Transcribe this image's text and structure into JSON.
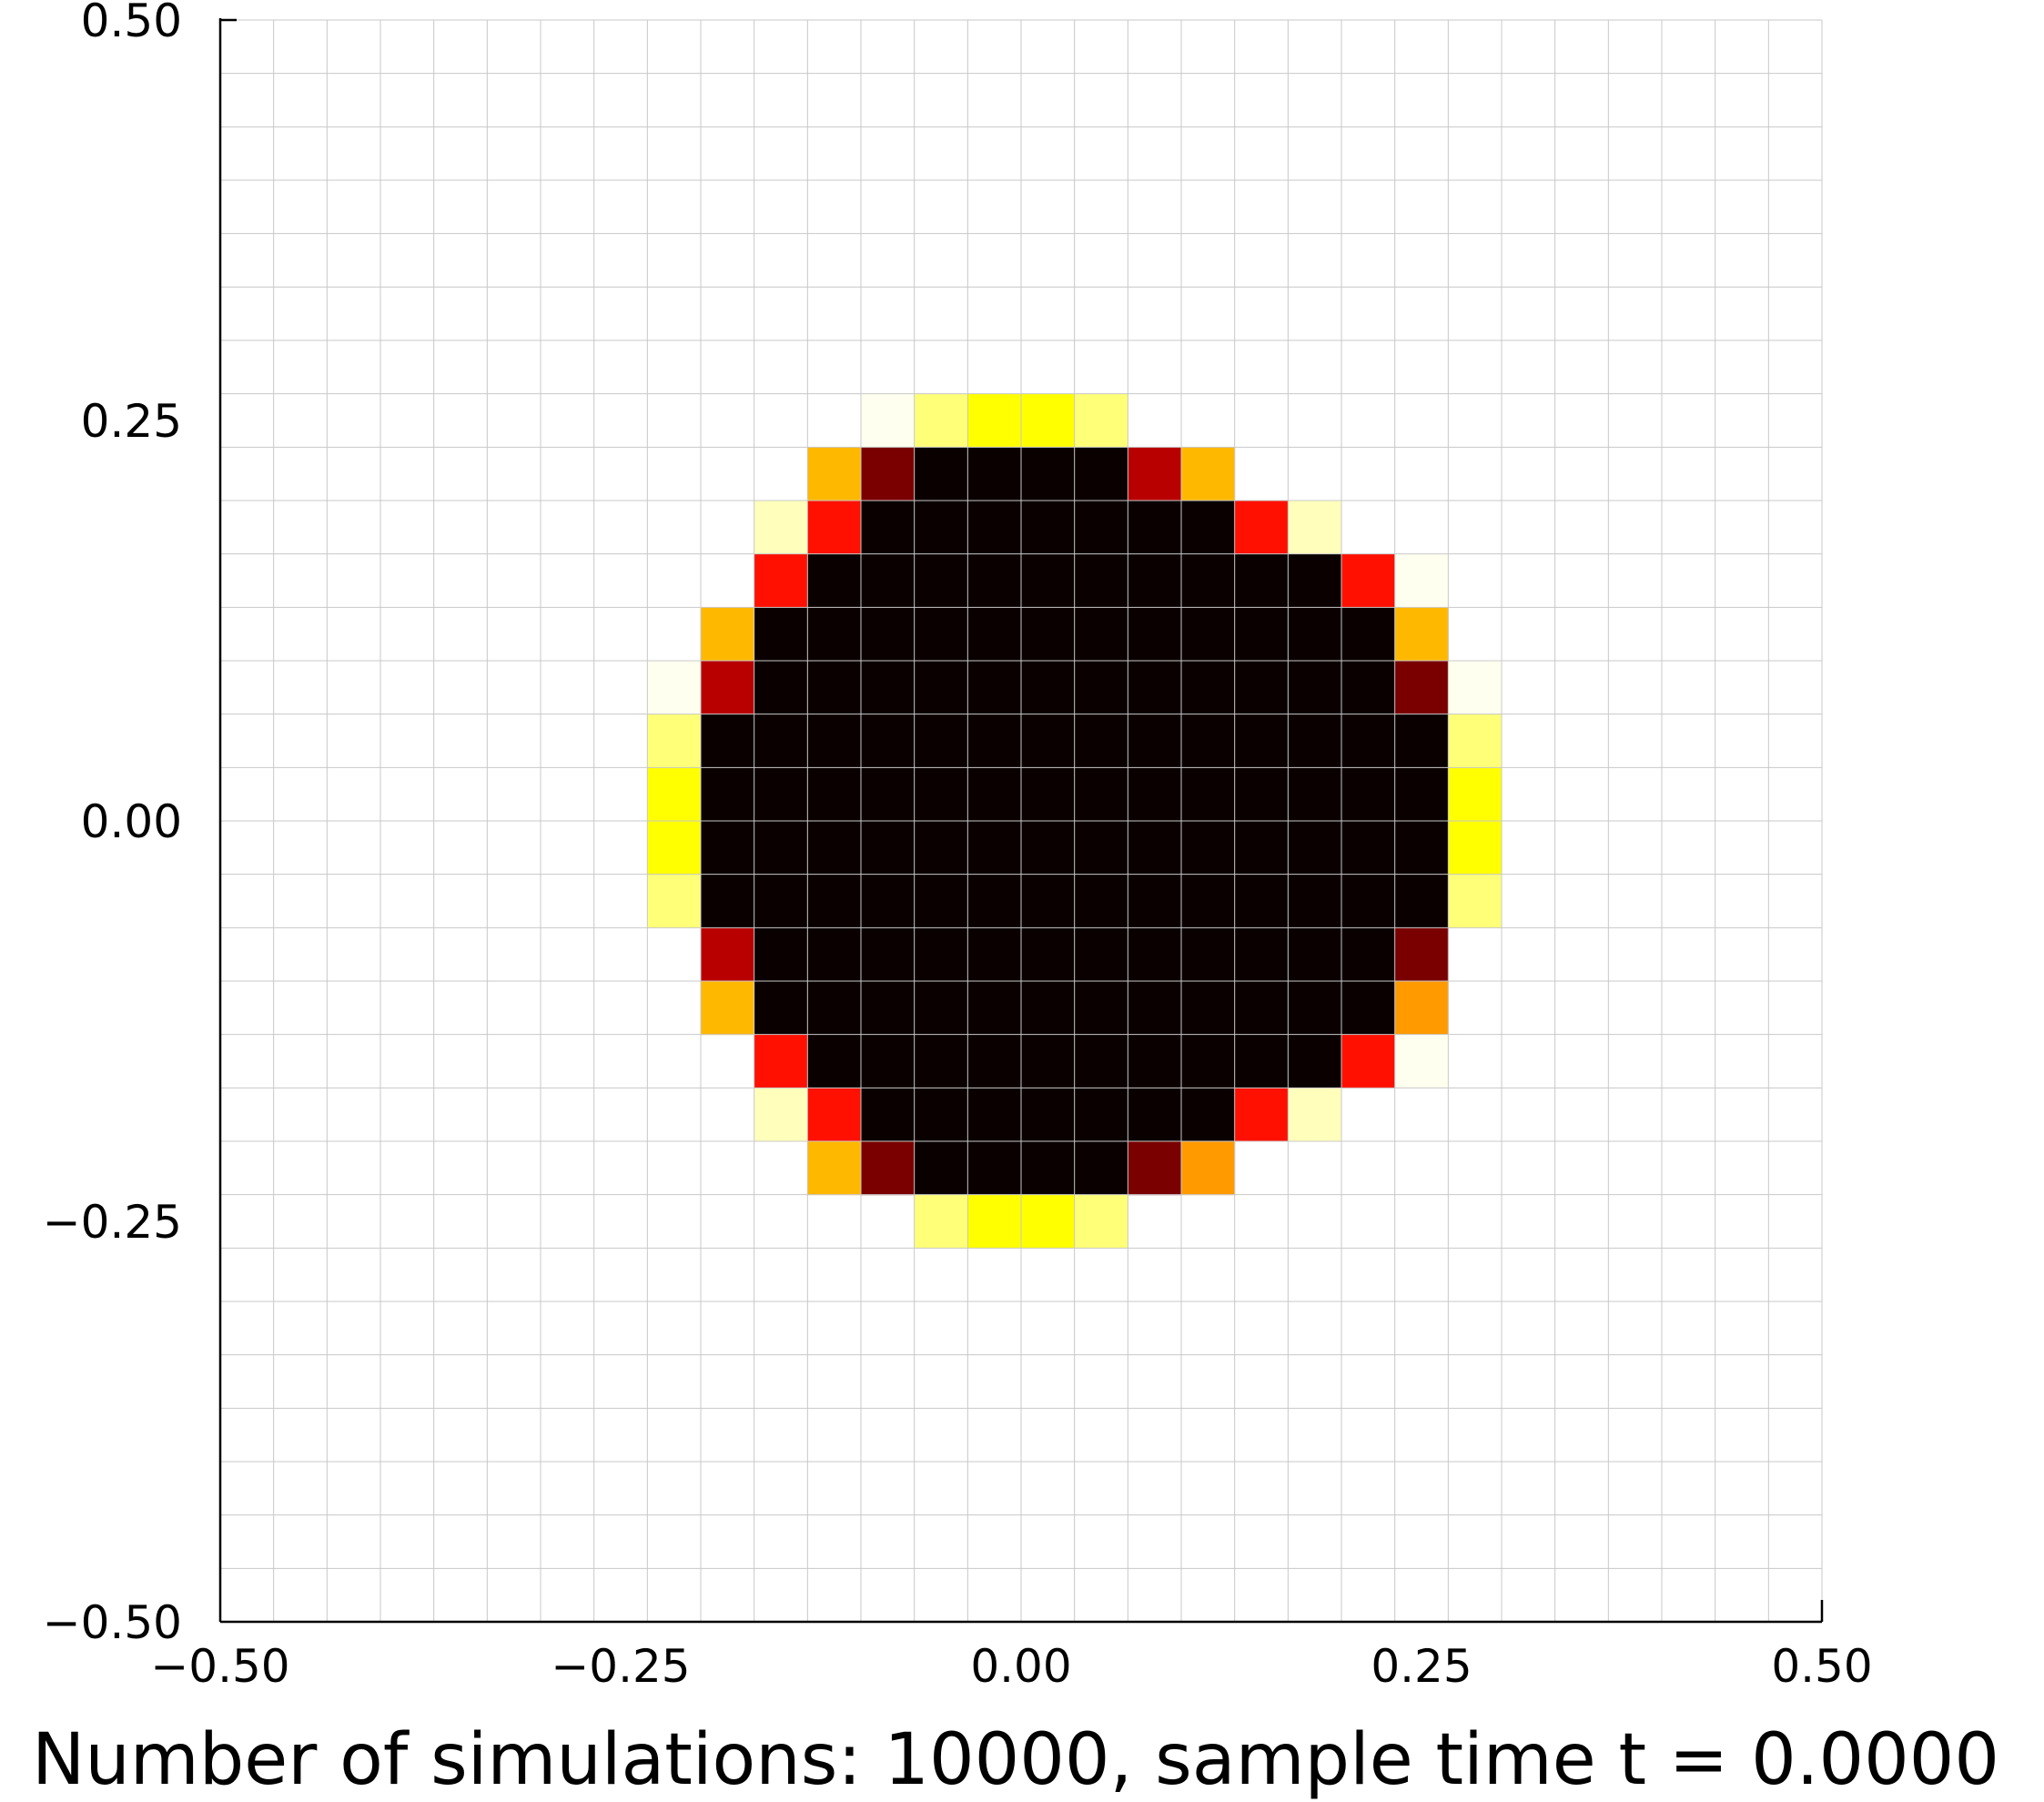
{
  "chart_data": {
    "type": "heatmap",
    "title": "",
    "caption": "Number of simulations: 10000, sample time t = 0.0000",
    "xlabel": "",
    "ylabel": "",
    "xlim": [
      -0.5,
      0.5
    ],
    "ylim": [
      -0.5,
      0.5
    ],
    "grid": true,
    "grid_cells": 30,
    "x_ticks": [
      "−0.50",
      "−0.25",
      "0.00",
      "0.25",
      "0.50"
    ],
    "y_ticks": [
      "0.50",
      "0.25",
      "0.00",
      "−0.25",
      "−0.50"
    ],
    "x_tick_values": [
      -0.5,
      -0.25,
      0,
      0.25,
      0.5
    ],
    "y_tick_values": [
      0.5,
      0.25,
      0,
      -0.25,
      -0.5
    ],
    "colormap": "hot (inverted)",
    "colors": {
      "empty": "#ffffff",
      "grid": "#c8c8c8",
      "axis": "#000000",
      "legend": {
        "c": "#0a0000",
        "m": "#7a0000",
        "r": "#b80000",
        "R": "#ff1000",
        "o": "#ff9a00",
        "O": "#ffb800",
        "y": "#ffff00",
        "Y": "#ffff78",
        "p": "#ffffbb",
        "w": "#fffff0"
      }
    },
    "cell_rows_top_to_bottom": [
      "..............................",
      "..............................",
      "..............................",
      "..............................",
      "..............................",
      "..............................",
      "..............................",
      "............wYyyY.............",
      "...........Omcccc rO..........",
      "..........pRcccccccRp.........",
      "..........Rcccccccccc Rw......",
      ".........Occcccccccccc O......",
      "........wrcccccccccccc mw.....",
      "........Yccccccccccccc cY.....",
      "........yccccccccccccc cy.....",
      "........yccccccccccccc cy.....",
      "........Yccccccccccccc cY.....",
      ".........rcccccccccccc m......",
      ".........Occcccccccccc o......",
      "..........Rcccccccccc Rw......",
      "..........pRcccccccRp.........",
      "...........Omcccc mo..........",
      ".............YyyY.............",
      "..............................",
      "..............................",
      "..............................",
      "..............................",
      "..............................",
      "..............................",
      ".............................."
    ]
  }
}
